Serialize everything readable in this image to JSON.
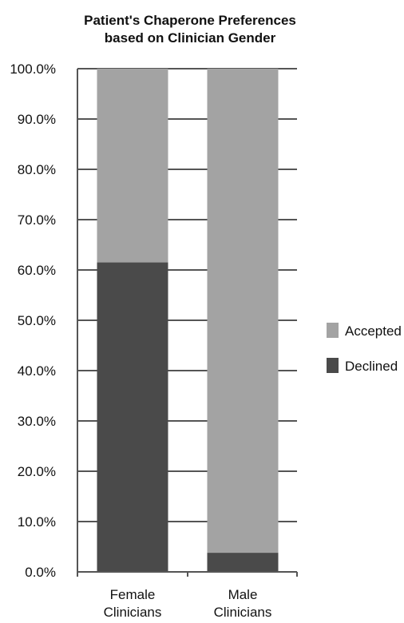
{
  "chart_data": {
    "type": "bar",
    "stacked": true,
    "title": "Patient's Chaperone Preferences based on Clinician Gender",
    "title_lines": [
      "Patient's Chaperone Preferences",
      "based on Clinician Gender"
    ],
    "categories": [
      "Female Clinicians",
      "Male Clinicians"
    ],
    "category_lines": [
      [
        "Female",
        "Clinicians"
      ],
      [
        "Male",
        "Clinicians"
      ]
    ],
    "series": [
      {
        "name": "Declined",
        "values": [
          61.5,
          3.8
        ],
        "color": "#4a4a4a"
      },
      {
        "name": "Accepted",
        "values": [
          38.5,
          96.2
        ],
        "color": "#a3a3a3"
      }
    ],
    "ylim": [
      0,
      100
    ],
    "y_ticks": [
      "0.0%",
      "10.0%",
      "20.0%",
      "30.0%",
      "40.0%",
      "50.0%",
      "60.0%",
      "70.0%",
      "80.0%",
      "90.0%",
      "100.0%"
    ],
    "grid": true,
    "legend_position": "right",
    "legend_order": [
      "Accepted",
      "Declined"
    ],
    "xlabel": "",
    "ylabel": ""
  }
}
